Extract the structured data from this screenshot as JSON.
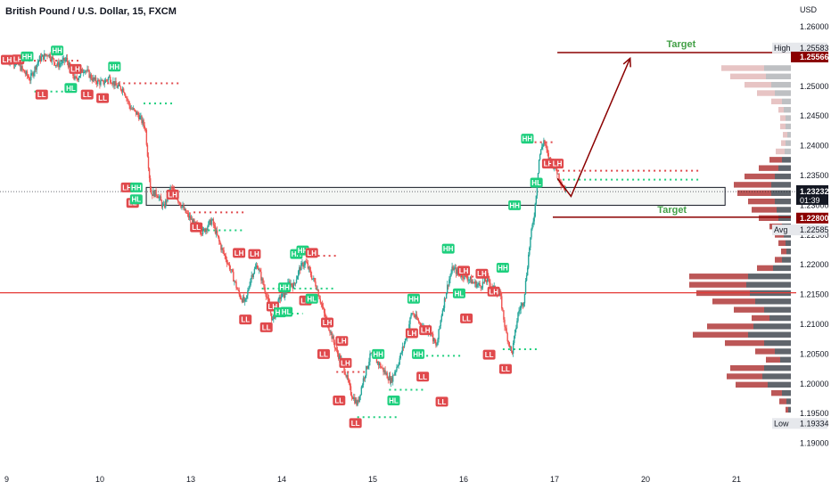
{
  "header": {
    "symbol_title": "British Pound / U.S. Dollar, 15, FXCM",
    "currency": "USD"
  },
  "colors": {
    "bull": "#26a69a",
    "bear": "#ef5350",
    "hh_tag": "#1ecf7e",
    "ll_tag": "#e0494c",
    "arrow": "#8b0000",
    "target_text": "#43a047",
    "support": "#e53935",
    "profile_dark": "#444a52",
    "profile_red": "#b03a3a"
  },
  "price_labels": {
    "high_tag": "High",
    "high_value": "1.25583",
    "target_value": "1.25566",
    "current_value": "1.23232",
    "countdown": "01:39",
    "low_target_value": "1.22800",
    "avg_tag": "Avg",
    "avg_value": "1.22585",
    "low_tag": "Low",
    "low_value": "1.19334"
  },
  "annotations": {
    "target_upper": "Target",
    "target_lower": "Target"
  },
  "chart_data": {
    "type": "candlestick",
    "title": "British Pound / U.S. Dollar, 15, FXCM",
    "ylabel": "USD",
    "ylim": [
      1.189,
      1.262
    ],
    "y_ticks": [
      1.19,
      1.195,
      1.2,
      1.205,
      1.21,
      1.215,
      1.22,
      1.225,
      1.23,
      1.235,
      1.24,
      1.245,
      1.25,
      1.255,
      1.26
    ],
    "x_tick_labels": [
      "9",
      "10",
      "13",
      "14",
      "15",
      "16",
      "17",
      "20",
      "21"
    ],
    "x_tick_days": [
      0,
      1,
      2,
      3,
      4,
      5,
      6,
      7,
      8
    ],
    "price_path": [
      [
        0.0,
        1.2545
      ],
      [
        0.1,
        1.254
      ],
      [
        0.25,
        1.2512
      ],
      [
        0.35,
        1.2545
      ],
      [
        0.45,
        1.2555
      ],
      [
        0.55,
        1.2535
      ],
      [
        0.65,
        1.2545
      ],
      [
        0.75,
        1.251
      ],
      [
        0.85,
        1.253
      ],
      [
        0.95,
        1.251
      ],
      [
        1.05,
        1.2505
      ],
      [
        1.12,
        1.2515
      ],
      [
        1.2,
        1.25
      ],
      [
        1.28,
        1.2495
      ],
      [
        1.35,
        1.2465
      ],
      [
        1.45,
        1.245
      ],
      [
        1.52,
        1.243
      ],
      [
        1.58,
        1.232
      ],
      [
        1.65,
        1.232
      ],
      [
        1.72,
        1.2295
      ],
      [
        1.8,
        1.233
      ],
      [
        1.88,
        1.231
      ],
      [
        1.95,
        1.229
      ],
      [
        2.05,
        1.227
      ],
      [
        2.15,
        1.2255
      ],
      [
        2.25,
        1.2275
      ],
      [
        2.35,
        1.223
      ],
      [
        2.45,
        1.2195
      ],
      [
        2.55,
        1.215
      ],
      [
        2.62,
        1.2135
      ],
      [
        2.68,
        1.218
      ],
      [
        2.75,
        1.22
      ],
      [
        2.85,
        1.215
      ],
      [
        2.92,
        1.2105
      ],
      [
        3.0,
        1.2145
      ],
      [
        3.05,
        1.215
      ],
      [
        3.1,
        1.217
      ],
      [
        3.15,
        1.2165
      ],
      [
        3.22,
        1.2195
      ],
      [
        3.28,
        1.2205
      ],
      [
        3.35,
        1.218
      ],
      [
        3.4,
        1.2165
      ],
      [
        3.48,
        1.212
      ],
      [
        3.55,
        1.209
      ],
      [
        3.62,
        1.2055
      ],
      [
        3.7,
        1.203
      ],
      [
        3.78,
        1.1985
      ],
      [
        3.85,
        1.1965
      ],
      [
        3.92,
        1.201
      ],
      [
        4.0,
        1.205
      ],
      [
        4.08,
        1.2035
      ],
      [
        4.15,
        1.202
      ],
      [
        4.22,
        1.2005
      ],
      [
        4.3,
        1.2035
      ],
      [
        4.38,
        1.2075
      ],
      [
        4.45,
        1.212
      ],
      [
        4.52,
        1.2105
      ],
      [
        4.6,
        1.209
      ],
      [
        4.65,
        1.209
      ],
      [
        4.72,
        1.206
      ],
      [
        4.78,
        1.212
      ],
      [
        4.85,
        1.217
      ],
      [
        4.9,
        1.2195
      ],
      [
        4.96,
        1.2185
      ],
      [
        5.05,
        1.218
      ],
      [
        5.12,
        1.217
      ],
      [
        5.2,
        1.2165
      ],
      [
        5.28,
        1.2175
      ],
      [
        5.35,
        1.216
      ],
      [
        5.42,
        1.215
      ],
      [
        5.48,
        1.209
      ],
      [
        5.55,
        1.205
      ],
      [
        5.62,
        1.212
      ],
      [
        5.68,
        1.214
      ],
      [
        5.75,
        1.224
      ],
      [
        5.8,
        1.229
      ],
      [
        5.85,
        1.238
      ],
      [
        5.9,
        1.241
      ],
      [
        5.95,
        1.238
      ],
      [
        6.0,
        1.237
      ],
      [
        6.05,
        1.2355
      ],
      [
        6.1,
        1.2335
      ],
      [
        6.15,
        1.2323
      ]
    ],
    "pivot_labels": [
      {
        "text": "LH",
        "kind": "bear",
        "day": 0.0,
        "price": 1.25445
      },
      {
        "text": "LH",
        "kind": "bear",
        "day": 0.12,
        "price": 1.2545
      },
      {
        "text": "HH",
        "kind": "bull",
        "day": 0.22,
        "price": 1.255
      },
      {
        "text": "HH",
        "kind": "bull",
        "day": 0.55,
        "price": 1.256
      },
      {
        "text": "LL",
        "kind": "bear",
        "day": 0.38,
        "price": 1.2486
      },
      {
        "text": "LH",
        "kind": "bear",
        "day": 0.75,
        "price": 1.2529
      },
      {
        "text": "HL",
        "kind": "bull",
        "day": 0.7,
        "price": 1.2497
      },
      {
        "text": "LL",
        "kind": "bear",
        "day": 0.88,
        "price": 1.2486
      },
      {
        "text": "HH",
        "kind": "bull",
        "day": 1.18,
        "price": 1.2533
      },
      {
        "text": "LL",
        "kind": "bear",
        "day": 1.05,
        "price": 1.248
      },
      {
        "text": "LH",
        "kind": "bear",
        "day": 1.32,
        "price": 1.233
      },
      {
        "text": "HH",
        "kind": "bull",
        "day": 1.42,
        "price": 1.233
      },
      {
        "text": "LL",
        "kind": "bear",
        "day": 1.38,
        "price": 1.2304
      },
      {
        "text": "HL",
        "kind": "bull",
        "day": 1.42,
        "price": 1.231
      },
      {
        "text": "LH",
        "kind": "bear",
        "day": 1.82,
        "price": 1.2318
      },
      {
        "text": "LL",
        "kind": "bear",
        "day": 2.08,
        "price": 1.2263
      },
      {
        "text": "LH",
        "kind": "bear",
        "day": 2.55,
        "price": 1.222
      },
      {
        "text": "LH",
        "kind": "bear",
        "day": 2.72,
        "price": 1.2218
      },
      {
        "text": "LL",
        "kind": "bear",
        "day": 2.62,
        "price": 1.2108
      },
      {
        "text": "LL",
        "kind": "bear",
        "day": 2.85,
        "price": 1.2095
      },
      {
        "text": "LH",
        "kind": "bear",
        "day": 2.92,
        "price": 1.213
      },
      {
        "text": "HL",
        "kind": "bull",
        "day": 3.0,
        "price": 1.212
      },
      {
        "text": "HL",
        "kind": "bull",
        "day": 3.07,
        "price": 1.2121
      },
      {
        "text": "HH",
        "kind": "bull",
        "day": 3.05,
        "price": 1.2162
      },
      {
        "text": "HH",
        "kind": "bull",
        "day": 3.18,
        "price": 1.2218
      },
      {
        "text": "HH",
        "kind": "bull",
        "day": 3.25,
        "price": 1.2224
      },
      {
        "text": "LH",
        "kind": "bear",
        "day": 3.35,
        "price": 1.222
      },
      {
        "text": "LH",
        "kind": "bear",
        "day": 3.28,
        "price": 1.214
      },
      {
        "text": "HL",
        "kind": "bull",
        "day": 3.35,
        "price": 1.2143
      },
      {
        "text": "LH",
        "kind": "bear",
        "day": 3.52,
        "price": 1.2103
      },
      {
        "text": "LL",
        "kind": "bear",
        "day": 3.48,
        "price": 1.205
      },
      {
        "text": "LH",
        "kind": "bear",
        "day": 3.68,
        "price": 1.2072
      },
      {
        "text": "LH",
        "kind": "bear",
        "day": 3.72,
        "price": 1.2035
      },
      {
        "text": "LL",
        "kind": "bear",
        "day": 3.65,
        "price": 1.1972
      },
      {
        "text": "LL",
        "kind": "bear",
        "day": 3.83,
        "price": 1.1934
      },
      {
        "text": "HH",
        "kind": "bull",
        "day": 4.08,
        "price": 1.205
      },
      {
        "text": "HL",
        "kind": "bull",
        "day": 4.25,
        "price": 1.1972
      },
      {
        "text": "HH",
        "kind": "bull",
        "day": 4.47,
        "price": 1.2143
      },
      {
        "text": "LH",
        "kind": "bear",
        "day": 4.45,
        "price": 1.2085
      },
      {
        "text": "LH",
        "kind": "bear",
        "day": 4.6,
        "price": 1.209
      },
      {
        "text": "HH",
        "kind": "bull",
        "day": 4.52,
        "price": 1.205
      },
      {
        "text": "LL",
        "kind": "bear",
        "day": 4.57,
        "price": 1.2012
      },
      {
        "text": "LL",
        "kind": "bear",
        "day": 4.78,
        "price": 1.197
      },
      {
        "text": "HH",
        "kind": "bull",
        "day": 4.85,
        "price": 1.2227
      },
      {
        "text": "LH",
        "kind": "bear",
        "day": 5.02,
        "price": 1.219
      },
      {
        "text": "HL",
        "kind": "bull",
        "day": 4.97,
        "price": 1.2152
      },
      {
        "text": "LL",
        "kind": "bear",
        "day": 5.05,
        "price": 1.211
      },
      {
        "text": "LH",
        "kind": "bear",
        "day": 5.22,
        "price": 1.2185
      },
      {
        "text": "HH",
        "kind": "bull",
        "day": 5.45,
        "price": 1.2195
      },
      {
        "text": "LH",
        "kind": "bear",
        "day": 5.35,
        "price": 1.2155
      },
      {
        "text": "LL",
        "kind": "bear",
        "day": 5.3,
        "price": 1.2049
      },
      {
        "text": "LL",
        "kind": "bear",
        "day": 5.48,
        "price": 1.2025
      },
      {
        "text": "HH",
        "kind": "bull",
        "day": 5.58,
        "price": 1.23
      },
      {
        "text": "HH",
        "kind": "bull",
        "day": 5.72,
        "price": 1.2412
      },
      {
        "text": "LH",
        "kind": "bear",
        "day": 5.95,
        "price": 1.237
      },
      {
        "text": "LH",
        "kind": "bear",
        "day": 6.05,
        "price": 1.237
      },
      {
        "text": "HL",
        "kind": "bull",
        "day": 5.82,
        "price": 1.2338
      }
    ],
    "dotted_levels": [
      {
        "color": "bear",
        "price": 1.2543,
        "day_start": 0.0,
        "day_end": 0.8
      },
      {
        "color": "bull",
        "price": 1.2491,
        "day_start": 0.3,
        "day_end": 0.75
      },
      {
        "color": "bear",
        "price": 1.2505,
        "day_start": 1.1,
        "day_end": 1.9
      },
      {
        "color": "bull",
        "price": 1.2471,
        "day_start": 1.5,
        "day_end": 1.82
      },
      {
        "color": "bear",
        "price": 1.2288,
        "day_start": 2.05,
        "day_end": 2.6
      },
      {
        "color": "bull",
        "price": 1.2258,
        "day_start": 2.15,
        "day_end": 2.6
      },
      {
        "color": "bear",
        "price": 1.2215,
        "day_start": 3.3,
        "day_end": 3.65
      },
      {
        "color": "bull",
        "price": 1.216,
        "day_start": 2.8,
        "day_end": 3.6
      },
      {
        "color": "bull",
        "price": 1.2118,
        "day_start": 2.95,
        "day_end": 3.25
      },
      {
        "color": "bear",
        "price": 1.202,
        "day_start": 3.62,
        "day_end": 3.95
      },
      {
        "color": "bull",
        "price": 1.199,
        "day_start": 4.2,
        "day_end": 4.6
      },
      {
        "color": "bull",
        "price": 1.1944,
        "day_start": 3.85,
        "day_end": 4.3
      },
      {
        "color": "bull",
        "price": 1.2047,
        "day_start": 4.55,
        "day_end": 5.0
      },
      {
        "color": "bear",
        "price": 1.218,
        "day_start": 5.05,
        "day_end": 5.3
      },
      {
        "color": "bull",
        "price": 1.2058,
        "day_start": 5.45,
        "day_end": 5.85
      },
      {
        "color": "bear",
        "price": 1.2406,
        "day_start": 5.8,
        "day_end": 6.0
      },
      {
        "color": "bear",
        "price": 1.2358,
        "day_start": 6.05,
        "day_end": 7.6
      },
      {
        "color": "bull",
        "price": 1.2343,
        "day_start": 6.05,
        "day_end": 7.6
      }
    ],
    "zone": {
      "price_top": 1.233,
      "price_bottom": 1.23,
      "day_start": 1.53,
      "day_end": 7.6
    },
    "horizontal_support": 1.2153,
    "projection": {
      "start": [
        6.2,
        1.2315
      ],
      "peak": [
        6.85,
        1.2547
      ]
    },
    "target_levels": [
      {
        "price": 1.25566,
        "day_start": 6.05,
        "day_end": 7.6
      },
      {
        "price": 1.228,
        "day_start": 6.0,
        "day_end": 7.6
      }
    ],
    "volume_profile": [
      {
        "price": 1.253,
        "red": 0.48,
        "dark": 0.3
      },
      {
        "price": 1.2516,
        "red": 0.4,
        "dark": 0.28
      },
      {
        "price": 1.2502,
        "red": 0.3,
        "dark": 0.22
      },
      {
        "price": 1.2488,
        "red": 0.2,
        "dark": 0.18
      },
      {
        "price": 1.2474,
        "red": 0.12,
        "dark": 0.1
      },
      {
        "price": 1.246,
        "red": 0.06,
        "dark": 0.08
      },
      {
        "price": 1.2446,
        "red": 0.06,
        "dark": 0.06
      },
      {
        "price": 1.2432,
        "red": 0.06,
        "dark": 0.06
      },
      {
        "price": 1.2418,
        "red": 0.05,
        "dark": 0.04
      },
      {
        "price": 1.2404,
        "red": 0.05,
        "dark": 0.06
      },
      {
        "price": 1.239,
        "red": 0.1,
        "dark": 0.07
      },
      {
        "price": 1.2376,
        "red": 0.14,
        "dark": 0.1
      },
      {
        "price": 1.2362,
        "red": 0.22,
        "dark": 0.14
      },
      {
        "price": 1.2348,
        "red": 0.34,
        "dark": 0.18
      },
      {
        "price": 1.2334,
        "red": 0.42,
        "dark": 0.22
      },
      {
        "price": 1.232,
        "red": 0.38,
        "dark": 0.22
      },
      {
        "price": 1.2306,
        "red": 0.3,
        "dark": 0.18
      },
      {
        "price": 1.2292,
        "red": 0.28,
        "dark": 0.16
      },
      {
        "price": 1.2278,
        "red": 0.22,
        "dark": 0.14
      },
      {
        "price": 1.2264,
        "red": 0.14,
        "dark": 0.1
      },
      {
        "price": 1.225,
        "red": 0.1,
        "dark": 0.08
      },
      {
        "price": 1.2236,
        "red": 0.08,
        "dark": 0.06
      },
      {
        "price": 1.2222,
        "red": 0.06,
        "dark": 0.05
      },
      {
        "price": 1.2208,
        "red": 0.08,
        "dark": 0.1
      },
      {
        "price": 1.2194,
        "red": 0.18,
        "dark": 0.2
      },
      {
        "price": 1.218,
        "red": 0.66,
        "dark": 0.48
      },
      {
        "price": 1.2166,
        "red": 0.64,
        "dark": 0.5
      },
      {
        "price": 1.2152,
        "red": 0.6,
        "dark": 0.46
      },
      {
        "price": 1.2138,
        "red": 0.48,
        "dark": 0.4
      },
      {
        "price": 1.2124,
        "red": 0.34,
        "dark": 0.3
      },
      {
        "price": 1.211,
        "red": 0.2,
        "dark": 0.24
      },
      {
        "price": 1.2096,
        "red": 0.52,
        "dark": 0.42
      },
      {
        "price": 1.2082,
        "red": 0.62,
        "dark": 0.48
      },
      {
        "price": 1.2068,
        "red": 0.44,
        "dark": 0.3
      },
      {
        "price": 1.2054,
        "red": 0.22,
        "dark": 0.18
      },
      {
        "price": 1.204,
        "red": 0.16,
        "dark": 0.12
      },
      {
        "price": 1.2026,
        "red": 0.38,
        "dark": 0.3
      },
      {
        "price": 1.2012,
        "red": 0.4,
        "dark": 0.32
      },
      {
        "price": 1.1998,
        "red": 0.36,
        "dark": 0.26
      },
      {
        "price": 1.1984,
        "red": 0.12,
        "dark": 0.1
      },
      {
        "price": 1.197,
        "red": 0.08,
        "dark": 0.05
      },
      {
        "price": 1.1956,
        "red": 0.03,
        "dark": 0.03
      }
    ]
  }
}
